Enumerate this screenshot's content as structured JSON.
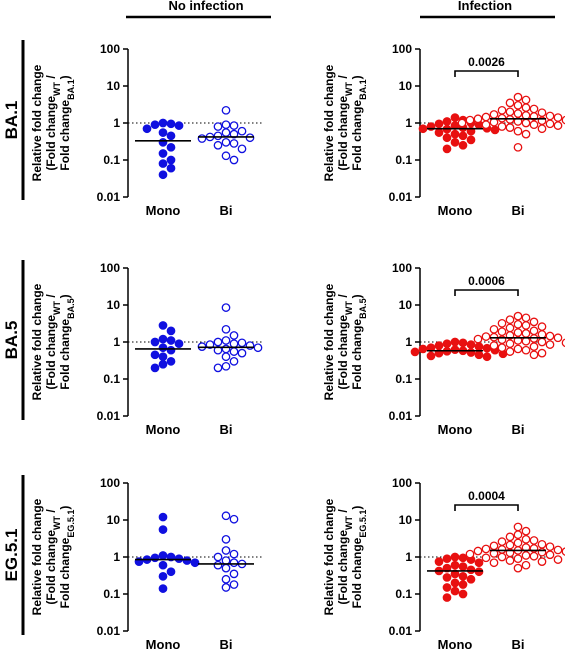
{
  "figure": {
    "column_headers": [
      "No infection",
      "Infection"
    ],
    "row_labels": [
      "BA.1",
      "BA.5",
      "EG.5.1"
    ],
    "colors": {
      "no_infection": "#1010e0",
      "infection": "#e81010"
    }
  },
  "chart_data": [
    {
      "type": "scatter",
      "row": "BA.1",
      "condition": "No infection",
      "ylabel_lines": [
        "Relative fold change",
        "(Fold change",
        "Fold change"
      ],
      "ylabel_subscripts": [
        "WT",
        "BA.1"
      ],
      "yscale": "log",
      "ylim": [
        0.01,
        100
      ],
      "yticks": [
        "100",
        "10",
        "1",
        "0.1",
        "0.01"
      ],
      "reference_line": 1,
      "categories": [
        "Mono",
        "Bi"
      ],
      "series": [
        {
          "name": "Mono",
          "marker": "filled",
          "median": 0.33,
          "values": [
            1.0,
            0.95,
            0.9,
            0.85,
            0.7,
            0.55,
            0.45,
            0.3,
            0.22,
            0.15,
            0.1,
            0.08,
            0.06,
            0.04
          ]
        },
        {
          "name": "Bi",
          "marker": "open",
          "median": 0.42,
          "values": [
            2.2,
            0.9,
            0.85,
            0.8,
            0.6,
            0.55,
            0.5,
            0.45,
            0.42,
            0.4,
            0.38,
            0.3,
            0.28,
            0.25,
            0.2,
            0.13,
            0.1
          ]
        }
      ]
    },
    {
      "type": "scatter",
      "row": "BA.1",
      "condition": "Infection",
      "ylabel_lines": [
        "Relative fold change",
        "(Fold change",
        "Fold change"
      ],
      "ylabel_subscripts": [
        "WT",
        "BA.1"
      ],
      "yscale": "log",
      "ylim": [
        0.01,
        100
      ],
      "yticks": [
        "100",
        "10",
        "1",
        "0.1",
        "0.01"
      ],
      "reference_line": 1,
      "categories": [
        "Mono",
        "Bi"
      ],
      "p_value": "0.0026",
      "series": [
        {
          "name": "Mono",
          "marker": "filled",
          "median": 0.7,
          "values": [
            1.4,
            1.2,
            1.1,
            1.0,
            0.95,
            0.9,
            0.85,
            0.8,
            0.75,
            0.72,
            0.7,
            0.68,
            0.65,
            0.6,
            0.55,
            0.5,
            0.45,
            0.4,
            0.35,
            0.3,
            0.25,
            0.2
          ]
        },
        {
          "name": "Bi",
          "marker": "open",
          "median": 1.3,
          "values": [
            5.0,
            4.2,
            3.5,
            3.0,
            2.6,
            2.4,
            2.2,
            2.0,
            1.9,
            1.8,
            1.7,
            1.6,
            1.55,
            1.5,
            1.45,
            1.4,
            1.35,
            1.3,
            1.25,
            1.2,
            1.2,
            1.15,
            1.1,
            1.1,
            1.05,
            1.0,
            1.0,
            0.95,
            0.9,
            0.9,
            0.85,
            0.8,
            0.75,
            0.7,
            0.6,
            0.5,
            0.22
          ]
        }
      ]
    },
    {
      "type": "scatter",
      "row": "BA.5",
      "condition": "No infection",
      "ylabel_lines": [
        "Relative fold change",
        "(Fold change",
        "Fold change"
      ],
      "ylabel_subscripts": [
        "WT",
        "BA.5"
      ],
      "yscale": "log",
      "ylim": [
        0.01,
        100
      ],
      "yticks": [
        "100",
        "10",
        "1",
        "0.1",
        "0.01"
      ],
      "reference_line": 1,
      "categories": [
        "Mono",
        "Bi"
      ],
      "series": [
        {
          "name": "Mono",
          "marker": "filled",
          "median": 0.65,
          "values": [
            2.8,
            2.0,
            1.2,
            1.1,
            1.0,
            0.9,
            0.7,
            0.6,
            0.45,
            0.4,
            0.3,
            0.25,
            0.2
          ]
        },
        {
          "name": "Bi",
          "marker": "open",
          "median": 0.72,
          "values": [
            8.5,
            2.2,
            1.5,
            1.1,
            1.0,
            0.95,
            0.9,
            0.85,
            0.8,
            0.75,
            0.7,
            0.65,
            0.6,
            0.55,
            0.5,
            0.4,
            0.3,
            0.22,
            0.2
          ]
        }
      ]
    },
    {
      "type": "scatter",
      "row": "BA.5",
      "condition": "Infection",
      "ylabel_lines": [
        "Relative fold change",
        "(Fold change",
        "Fold change"
      ],
      "ylabel_subscripts": [
        "WT",
        "BA.5"
      ],
      "yscale": "log",
      "ylim": [
        0.01,
        100
      ],
      "yticks": [
        "100",
        "10",
        "1",
        "0.1",
        "0.01"
      ],
      "reference_line": 1,
      "categories": [
        "Mono",
        "Bi"
      ],
      "p_value": "0.0006",
      "series": [
        {
          "name": "Mono",
          "marker": "filled",
          "median": 0.58,
          "values": [
            1.0,
            0.95,
            0.9,
            0.85,
            0.8,
            0.75,
            0.7,
            0.68,
            0.65,
            0.62,
            0.6,
            0.58,
            0.56,
            0.54,
            0.52,
            0.5,
            0.48,
            0.45,
            0.42,
            0.4
          ]
        },
        {
          "name": "Bi",
          "marker": "open",
          "median": 1.3,
          "values": [
            5.0,
            4.5,
            4.0,
            3.5,
            3.2,
            3.0,
            2.8,
            2.6,
            2.4,
            2.2,
            2.0,
            1.9,
            1.8,
            1.7,
            1.6,
            1.5,
            1.45,
            1.4,
            1.35,
            1.3,
            1.25,
            1.2,
            1.15,
            1.1,
            1.05,
            1.0,
            0.95,
            0.9,
            0.85,
            0.8,
            0.75,
            0.7,
            0.65,
            0.6,
            0.55,
            0.5,
            0.45
          ]
        }
      ]
    },
    {
      "type": "scatter",
      "row": "EG.5.1",
      "condition": "No infection",
      "ylabel_lines": [
        "Relative fold change",
        "(Fold change",
        "Fold change"
      ],
      "ylabel_subscripts": [
        "WT",
        "EG.5.1"
      ],
      "yscale": "log",
      "ylim": [
        0.01,
        100
      ],
      "yticks": [
        "100",
        "10",
        "1",
        "0.1",
        "0.01"
      ],
      "reference_line": 1,
      "categories": [
        "Mono",
        "Bi"
      ],
      "series": [
        {
          "name": "Mono",
          "marker": "filled",
          "median": 0.85,
          "values": [
            12.0,
            5.5,
            1.1,
            1.0,
            0.95,
            0.9,
            0.85,
            0.8,
            0.75,
            0.7,
            0.6,
            0.4,
            0.3,
            0.14
          ]
        },
        {
          "name": "Bi",
          "marker": "open",
          "median": 0.65,
          "values": [
            13.0,
            10.5,
            3.0,
            1.5,
            1.2,
            1.0,
            0.8,
            0.7,
            0.65,
            0.6,
            0.5,
            0.35,
            0.25,
            0.18,
            0.15
          ]
        }
      ]
    },
    {
      "type": "scatter",
      "row": "EG.5.1",
      "condition": "Infection",
      "ylabel_lines": [
        "Relative fold change",
        "(Fold change",
        "Fold change"
      ],
      "ylabel_subscripts": [
        "WT",
        "EG.5.1"
      ],
      "yscale": "log",
      "ylim": [
        0.01,
        100
      ],
      "yticks": [
        "100",
        "10",
        "1",
        "0.1",
        "0.01"
      ],
      "reference_line": 1,
      "categories": [
        "Mono",
        "Bi"
      ],
      "p_value": "0.0004",
      "series": [
        {
          "name": "Mono",
          "marker": "filled",
          "median": 0.42,
          "values": [
            1.0,
            0.95,
            0.9,
            0.85,
            0.75,
            0.7,
            0.6,
            0.55,
            0.5,
            0.45,
            0.42,
            0.4,
            0.35,
            0.3,
            0.28,
            0.25,
            0.2,
            0.18,
            0.15,
            0.12,
            0.1,
            0.08
          ]
        },
        {
          "name": "Bi",
          "marker": "open",
          "median": 1.5,
          "values": [
            6.5,
            5.0,
            4.0,
            3.5,
            3.0,
            2.8,
            2.6,
            2.4,
            2.2,
            2.1,
            2.0,
            1.9,
            1.8,
            1.7,
            1.65,
            1.6,
            1.55,
            1.5,
            1.45,
            1.4,
            1.35,
            1.3,
            1.25,
            1.2,
            1.15,
            1.1,
            1.05,
            1.0,
            0.95,
            0.9,
            0.85,
            0.8,
            0.75,
            0.7,
            0.6,
            0.5
          ]
        }
      ]
    }
  ]
}
